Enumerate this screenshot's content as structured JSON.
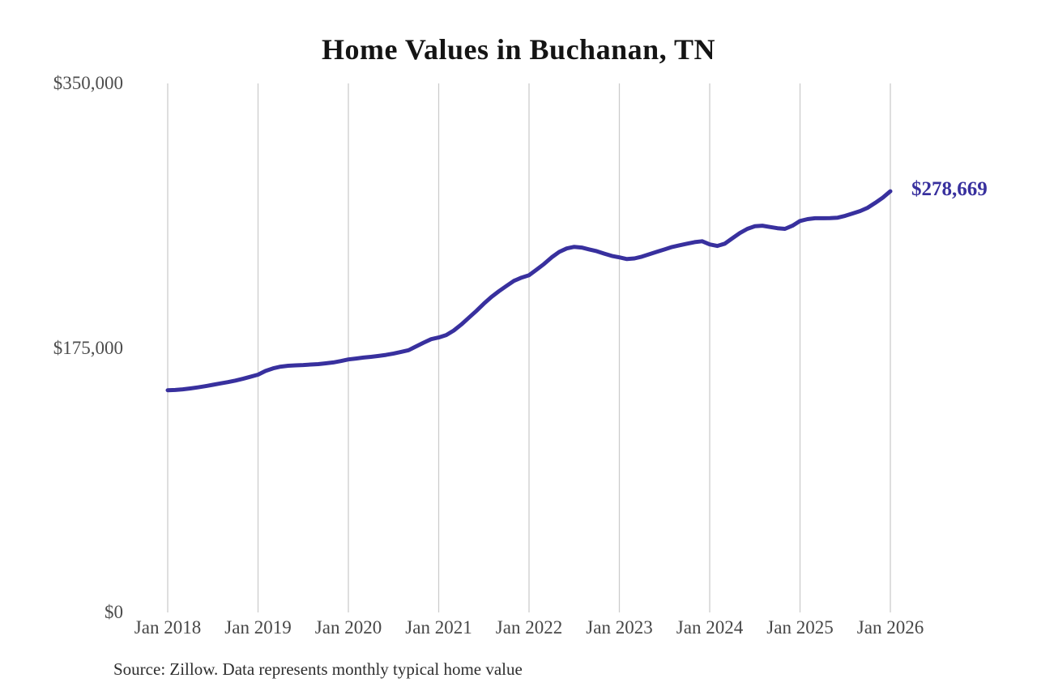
{
  "chart": {
    "title": "Home Values in Buchanan, TN",
    "source_note": "Source: Zillow. Data represents monthly typical home value",
    "end_label": "$278,669",
    "line_color": "#38309e",
    "grid_color": "#cccccc",
    "y_tick_color": "#4d4d4d",
    "x_tick_color": "#474747",
    "title_color": "#141414"
  },
  "chart_data": {
    "type": "line",
    "title": "Home Values in Buchanan, TN",
    "source_note": "Source: Zillow. Data represents monthly typical home value",
    "xlabel": "",
    "ylabel": "",
    "ylim": [
      0,
      350000
    ],
    "y_tick_labels": [
      "$0",
      "$175,000",
      "$350,000"
    ],
    "y_tick_values": [
      0,
      175000,
      350000
    ],
    "x_tick_labels": [
      "Jan 2018",
      "Jan 2019",
      "Jan 2020",
      "Jan 2021",
      "Jan 2022",
      "Jan 2023",
      "Jan 2024",
      "Jan 2025",
      "Jan 2026"
    ],
    "grid": "vertical-only",
    "legend": "none",
    "series": [
      {
        "name": "Monthly typical home value",
        "unit": "USD",
        "interval": "monthly",
        "start_month": "2018-01",
        "end_month": "2026-01",
        "final_value": 278669,
        "final_value_label": "$278,669",
        "values": [
          147000,
          147200,
          147600,
          148200,
          148900,
          149700,
          150600,
          151500,
          152400,
          153400,
          154600,
          155900,
          157300,
          159800,
          161500,
          162600,
          163200,
          163500,
          163700,
          164000,
          164300,
          164800,
          165400,
          166300,
          167400,
          168000,
          168600,
          169100,
          169700,
          170400,
          171300,
          172400,
          173500,
          176000,
          178500,
          180800,
          181900,
          183500,
          186500,
          190500,
          195000,
          199500,
          204300,
          208700,
          212500,
          216000,
          219400,
          221500,
          223100,
          226800,
          230600,
          234900,
          238500,
          240800,
          241900,
          241400,
          240200,
          239000,
          237400,
          235900,
          234900,
          233800,
          234200,
          235400,
          237000,
          238600,
          240200,
          241800,
          242900,
          244000,
          245000,
          245600,
          243500,
          242500,
          244000,
          247500,
          251000,
          253800,
          255500,
          255900,
          255000,
          254200,
          253800,
          255900,
          259000,
          260200,
          260800,
          260800,
          260900,
          261200,
          262400,
          264000,
          265600,
          267800,
          271000,
          274500,
          278669
        ]
      }
    ]
  }
}
